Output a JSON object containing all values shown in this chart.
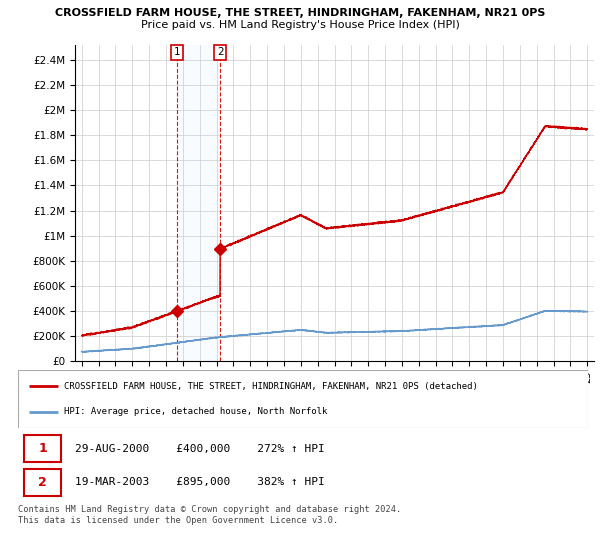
{
  "title_line1": "CROSSFIELD FARM HOUSE, THE STREET, HINDRINGHAM, FAKENHAM, NR21 0PS",
  "title_line2": "Price paid vs. HM Land Registry's House Price Index (HPI)",
  "ylabel_ticks": [
    "£0",
    "£200K",
    "£400K",
    "£600K",
    "£800K",
    "£1M",
    "£1.2M",
    "£1.4M",
    "£1.6M",
    "£1.8M",
    "£2M",
    "£2.2M",
    "£2.4M"
  ],
  "ylabel_values": [
    0,
    200000,
    400000,
    600000,
    800000,
    1000000,
    1200000,
    1400000,
    1600000,
    1800000,
    2000000,
    2200000,
    2400000
  ],
  "ylim": [
    0,
    2520000
  ],
  "xlim_start": 1994.6,
  "xlim_end": 2025.4,
  "sale1_date": 2000.66,
  "sale1_price": 400000,
  "sale1_label": "1",
  "sale2_date": 2003.21,
  "sale2_price": 895000,
  "sale2_label": "2",
  "sale1_info": "29-AUG-2000    £400,000    272% ↑ HPI",
  "sale2_info": "19-MAR-2003    £895,000    382% ↑ HPI",
  "legend_line1": "CROSSFIELD FARM HOUSE, THE STREET, HINDRINGHAM, FAKENHAM, NR21 0PS (detached)",
  "legend_line2": "HPI: Average price, detached house, North Norfolk",
  "footnote": "Contains HM Land Registry data © Crown copyright and database right 2024.\nThis data is licensed under the Open Government Licence v3.0.",
  "hpi_color": "#6699cc",
  "price_color": "#cc0000",
  "box_color": "#cc0000",
  "background_color": "#ffffff",
  "grid_color": "#cccccc",
  "shade_color": "#ddeeff"
}
